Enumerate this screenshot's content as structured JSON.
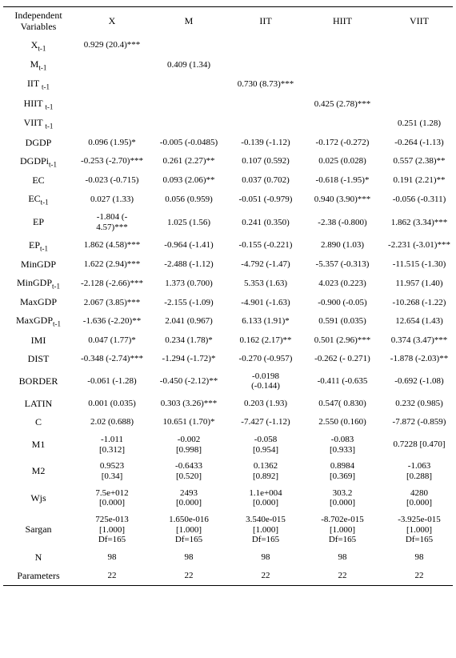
{
  "header": {
    "rowlabel_line1": "Independent",
    "rowlabel_line2": "Variables",
    "cols": [
      "X",
      "M",
      "IIT",
      "HIIT",
      "VIIT"
    ]
  },
  "rows": [
    {
      "label": "X",
      "sub": "t-1",
      "c": [
        "0.929 (20.4)***",
        "",
        "",
        "",
        ""
      ]
    },
    {
      "label": "M",
      "sub": "t-1",
      "c": [
        "",
        "0.409 (1.34)",
        "",
        "",
        ""
      ]
    },
    {
      "label": "IIT ",
      "sub": "t-1",
      "c": [
        "",
        "",
        "0.730 (8.73)***",
        "",
        ""
      ]
    },
    {
      "label": "HIIT ",
      "sub": "t-1",
      "c": [
        "",
        "",
        "",
        "0.425 (2.78)***",
        ""
      ]
    },
    {
      "label": "VIIT ",
      "sub": "t-1",
      "c": [
        "",
        "",
        "",
        "",
        "0.251 (1.28)"
      ]
    },
    {
      "label": "DGDP",
      "sub": "",
      "c": [
        "0.096 (1.95)*",
        "-0.005 (-0.0485)",
        "-0.139 (-1.12)",
        "-0.172 (-0.272)",
        "-0.264 (-1.13)"
      ]
    },
    {
      "label": "DGDPi",
      "sub": "t-1",
      "c": [
        "-0.253 (-2.70)***",
        "0.261 (2.27)**",
        "0.107 (0.592)",
        "0.025 (0.028)",
        "0.557 (2.38)**"
      ]
    },
    {
      "label": "EC",
      "sub": "",
      "c": [
        "-0.023 (-0.715)",
        "0.093 (2.06)**",
        "0.037 (0.702)",
        "-0.618 (-1.95)*",
        "0.191 (2.21)**"
      ]
    },
    {
      "label": "EC",
      "sub": "t-1",
      "c": [
        "0.027 (1.33)",
        "0.056 (0.959)",
        "-0.051 (-0.979)",
        "0.940 (3.90)***",
        "-0.056 (-0.311)"
      ]
    },
    {
      "label": "EP",
      "sub": "",
      "c": [
        "-1.804  (-\n4.57)***",
        "1.025 (1.56)",
        "0.241 (0.350)",
        "-2.38 (-0.800)",
        "1.862 (3.34)***"
      ]
    },
    {
      "label": "EP",
      "sub": "t-1",
      "c": [
        "1.862  (4.58)***",
        "-0.964 (-1.41)",
        "-0.155 (-0.221)",
        "2.890 (1.03)",
        "-2.231 (-3.01)***"
      ]
    },
    {
      "label": "MinGDP",
      "sub": "",
      "c": [
        "1.622 (2.94)***",
        "-2.488 (-1.12)",
        "-4.792 (-1.47)",
        "-5.357 (-0.313)",
        "-11.515 (-1.30)"
      ]
    },
    {
      "label": "MinGDP",
      "sub": "t-1",
      "c": [
        "-2.128 (-2.66)***",
        "1.373 (0.700)",
        "5.353 (1.63)",
        "4.023 (0.223)",
        "11.957 (1.40)"
      ]
    },
    {
      "label": "MaxGDP",
      "sub": "",
      "c": [
        "2.067  (3.85)***",
        "-2.155 (-1.09)",
        "-4.901 (-1.63)",
        "-0.900 (-0.05)",
        "-10.268 (-1.22)"
      ]
    },
    {
      "label": "MaxGDP",
      "sub": "t-1",
      "c": [
        "-1.636  (-2.20)**",
        "2.041 (0.967)",
        "6.133 (1.91)*",
        "0.591 (0.035)",
        "12.654 (1.43)"
      ]
    },
    {
      "label": "IMI",
      "sub": "",
      "c": [
        "0.047  (1.77)*",
        "0.234 (1.78)*",
        "0.162 (2.17)**",
        "0.501 (2.96)***",
        "0.374 (3.47)***"
      ]
    },
    {
      "label": "DIST",
      "sub": "",
      "c": [
        "-0.348 (-2.74)***",
        "-1.294 (-1.72)*",
        "-0.270 (-0.957)",
        "-0.262 (- 0.271)",
        "-1.878 (-2.03)**"
      ]
    },
    {
      "label": "BORDER",
      "sub": "",
      "c": [
        "-0.061 (-1.28)",
        "-0.450 (-2.12)**",
        "-0.0198\n(-0.144)",
        "-0.411 (-0.635",
        "-0.692 (-1.08)"
      ]
    },
    {
      "label": "LATIN",
      "sub": "",
      "c": [
        "0.001   (0.035)",
        "0.303 (3.26)***",
        "0.203 (1.93)",
        "0.547( 0.830)",
        "0.232 (0.985)"
      ]
    },
    {
      "label": "C",
      "sub": "",
      "c": [
        "2.02 (0.688)",
        "10.651 (1.70)*",
        "-7.427 (-1.12)",
        "2.550 (0.160)",
        "-7.872 (-0.859)"
      ]
    },
    {
      "label": "M1",
      "sub": "",
      "c": [
        "-1.011\n[0.312]",
        "-0.002\n[0.998]",
        "-0.058\n[0.954]",
        "-0.083\n[0.933]",
        "0.7228 [0.470]"
      ]
    },
    {
      "label": "M2",
      "sub": "",
      "c": [
        "0.9523\n[0.34]",
        "-0.6433\n[0.520]",
        "0.1362\n[0.892]",
        "0.8984\n[0.369]",
        "-1.063\n[0.288]"
      ]
    },
    {
      "label": "Wjs",
      "sub": "",
      "c": [
        "7.5e+012\n[0.000]",
        "2493\n[0.000]",
        "1.1e+004\n[0.000]",
        "303.2\n[0.000]",
        "4280\n[0.000]"
      ]
    },
    {
      "label": "Sargan",
      "sub": "",
      "c": [
        "725e-013\n[1.000]\nDf=165",
        "1.650e-016\n[1.000]\nDf=165",
        "3.540e-015\n[1.000]\nDf=165",
        "-8.702e-015\n[1.000]\nDf=165",
        "-3.925e-015\n[1.000]\nDf=165"
      ]
    },
    {
      "label": "N",
      "sub": "",
      "c": [
        "98",
        "98",
        "98",
        "98",
        "98"
      ]
    },
    {
      "label": "Parameters",
      "sub": "",
      "c": [
        "22",
        "22",
        "22",
        "22",
        "22"
      ]
    }
  ]
}
